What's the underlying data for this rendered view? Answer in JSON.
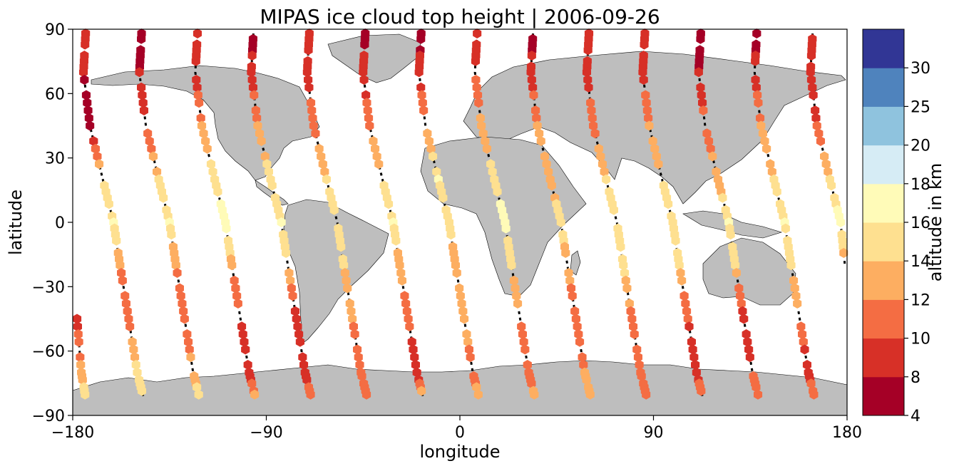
{
  "chart_data": {
    "type": "scatter",
    "title": "MIPAS ice cloud top height | 2006-09-26",
    "xlabel": "longitude",
    "ylabel": "latitude",
    "xlim": [
      -180,
      180
    ],
    "ylim": [
      -90,
      90
    ],
    "x_ticks": [
      -180,
      -90,
      0,
      90,
      180
    ],
    "x_tick_labels": [
      "−180",
      "−90",
      "0",
      "90",
      "180"
    ],
    "y_ticks": [
      90,
      60,
      30,
      0,
      -30,
      -60,
      -90
    ],
    "y_tick_labels": [
      "90",
      "60",
      "30",
      "0",
      "−30",
      "−60",
      "−90"
    ],
    "map": {
      "projection": "PlateCarree",
      "land_color": "#bebebe",
      "coastline_color": "#000000"
    },
    "colorbar": {
      "label": "altitude in km",
      "orientation": "vertical",
      "placement": "right",
      "bounds": [
        4,
        8,
        10,
        12,
        14,
        16,
        18,
        20,
        25,
        30
      ],
      "tick_labels": [
        "4",
        "8",
        "10",
        "12",
        "14",
        "16",
        "18",
        "20",
        "25",
        "30"
      ],
      "colors": [
        "#a50026",
        "#d73027",
        "#f46d43",
        "#fdae61",
        "#fee090",
        "#fffbb8",
        "#d6ecf5",
        "#8fc3de",
        "#4f83bd",
        "#313695"
      ]
    },
    "track_style": "dashed black line (orbit segments without detected ice clouds)",
    "orbit_tracks": [
      {
        "lat": [
          88,
          70,
          45,
          20,
          0,
          -20,
          -45,
          -70,
          -82
        ],
        "lon": [
          -174,
          -175,
          -172,
          -166,
          -161,
          -158,
          -154,
          -150,
          -147
        ],
        "alt": [
          8,
          8,
          7,
          14,
          16,
          12,
          10,
          15,
          16
        ]
      },
      {
        "lat": [
          88,
          70,
          45,
          20,
          0,
          -20,
          -45,
          -70,
          -82
        ],
        "lon": [
          -148,
          -149,
          -146,
          -140,
          -135,
          -132,
          -128,
          -124,
          -121
        ],
        "alt": [
          7,
          8,
          10,
          14,
          16,
          12,
          10,
          13,
          15
        ]
      },
      {
        "lat": [
          88,
          70,
          45,
          20,
          0,
          -20,
          -45,
          -70,
          -82
        ],
        "lon": [
          -122,
          -123,
          -120,
          -114,
          -109,
          -106,
          -102,
          -98,
          -95
        ],
        "alt": [
          8,
          9,
          12,
          15,
          17,
          13,
          9,
          8,
          13
        ]
      },
      {
        "lat": [
          88,
          70,
          45,
          20,
          0,
          -20,
          -45,
          -70,
          -82
        ],
        "lon": [
          -96,
          -97,
          -94,
          -88,
          -83,
          -80,
          -76,
          -72,
          -69
        ],
        "alt": [
          7,
          9,
          12,
          15,
          16,
          14,
          9,
          8,
          12
        ]
      },
      {
        "lat": [
          88,
          70,
          45,
          20,
          0,
          -20,
          -45,
          -70,
          -82
        ],
        "lon": [
          -70,
          -71,
          -68,
          -62,
          -57,
          -54,
          -50,
          -46,
          -43
        ],
        "alt": [
          8,
          9,
          11,
          14,
          16,
          14,
          12,
          11,
          12
        ]
      },
      {
        "lat": [
          88,
          70,
          45,
          20,
          0,
          -20,
          -45,
          -70,
          -82
        ],
        "lon": [
          -44,
          -45,
          -42,
          -36,
          -31,
          -28,
          -24,
          -20,
          -17
        ],
        "alt": [
          7,
          9,
          11,
          15,
          16,
          13,
          11,
          8,
          14
        ]
      },
      {
        "lat": [
          88,
          70,
          45,
          20,
          0,
          -20,
          -45,
          -70,
          -82
        ],
        "lon": [
          -18,
          -19,
          -16,
          -10,
          -5,
          -2,
          2,
          6,
          9
        ],
        "alt": [
          7,
          9,
          12,
          16,
          15,
          12,
          13,
          11,
          13
        ]
      },
      {
        "lat": [
          88,
          70,
          45,
          20,
          0,
          -20,
          -45,
          -70,
          -82
        ],
        "lon": [
          8,
          7,
          10,
          16,
          21,
          24,
          28,
          32,
          35
        ],
        "alt": [
          8,
          10,
          13,
          15,
          17,
          14,
          12,
          10,
          14
        ]
      },
      {
        "lat": [
          88,
          70,
          45,
          20,
          0,
          -20,
          -45,
          -70,
          -82
        ],
        "lon": [
          34,
          33,
          36,
          42,
          47,
          50,
          54,
          58,
          61
        ],
        "alt": [
          7,
          9,
          12,
          13,
          15,
          13,
          10,
          12,
          13
        ]
      },
      {
        "lat": [
          88,
          70,
          45,
          20,
          0,
          -20,
          -45,
          -70,
          -82
        ],
        "lon": [
          60,
          59,
          62,
          68,
          73,
          76,
          80,
          84,
          87
        ],
        "alt": [
          8,
          9,
          11,
          14,
          16,
          15,
          11,
          10,
          12
        ]
      },
      {
        "lat": [
          88,
          70,
          45,
          20,
          0,
          -20,
          -45,
          -70,
          -82
        ],
        "lon": [
          86,
          85,
          88,
          94,
          99,
          102,
          106,
          110,
          113
        ],
        "alt": [
          8,
          9,
          12,
          14,
          15,
          14,
          10,
          8,
          13
        ]
      },
      {
        "lat": [
          88,
          70,
          45,
          20,
          0,
          -20,
          -45,
          -70,
          -82
        ],
        "lon": [
          112,
          111,
          114,
          120,
          125,
          128,
          132,
          136,
          139
        ],
        "alt": [
          7,
          8,
          11,
          13,
          16,
          14,
          9,
          10,
          12
        ]
      },
      {
        "lat": [
          88,
          70,
          45,
          20,
          0,
          -20,
          -45,
          -70,
          -82
        ],
        "lon": [
          138,
          137,
          140,
          146,
          151,
          154,
          158,
          162,
          165
        ],
        "alt": [
          7,
          9,
          12,
          14,
          16,
          15,
          11,
          9,
          12
        ]
      },
      {
        "lat": [
          88,
          70,
          45,
          20,
          0,
          -20,
          -45,
          -70,
          -82
        ],
        "lon": [
          164,
          163,
          166,
          172,
          177,
          179,
          -178,
          -176,
          -174
        ],
        "alt": [
          8,
          9,
          10,
          14,
          17,
          12,
          9,
          13,
          15
        ]
      }
    ]
  }
}
